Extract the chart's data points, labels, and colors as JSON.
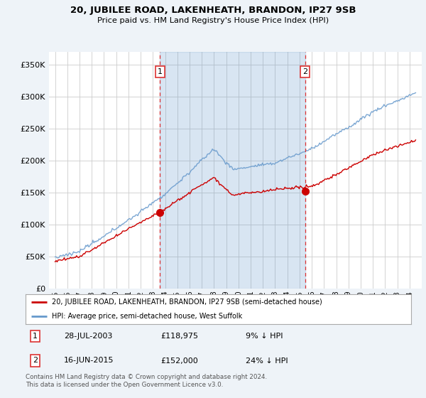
{
  "title": "20, JUBILEE ROAD, LAKENHEATH, BRANDON, IP27 9SB",
  "subtitle": "Price paid vs. HM Land Registry's House Price Index (HPI)",
  "background_color": "#eef3f8",
  "plot_bg_color": "#ffffff",
  "legend_label_red": "20, JUBILEE ROAD, LAKENHEATH, BRANDON, IP27 9SB (semi-detached house)",
  "legend_label_blue": "HPI: Average price, semi-detached house, West Suffolk",
  "footer": "Contains HM Land Registry data © Crown copyright and database right 2024.\nThis data is licensed under the Open Government Licence v3.0.",
  "annotation1_date": "28-JUL-2003",
  "annotation1_price": "£118,975",
  "annotation1_hpi": "9% ↓ HPI",
  "annotation2_date": "16-JUN-2015",
  "annotation2_price": "£152,000",
  "annotation2_hpi": "24% ↓ HPI",
  "sale1_x": 2003.57,
  "sale1_y": 118975,
  "sale2_x": 2015.45,
  "sale2_y": 152000,
  "ylim": [
    0,
    370000
  ],
  "xlim": [
    1994.5,
    2025.0
  ],
  "red_color": "#cc0000",
  "blue_color": "#6699cc",
  "blue_fill": "#dce8f5",
  "vline_color": "#dd3333",
  "grid_color": "#cccccc"
}
